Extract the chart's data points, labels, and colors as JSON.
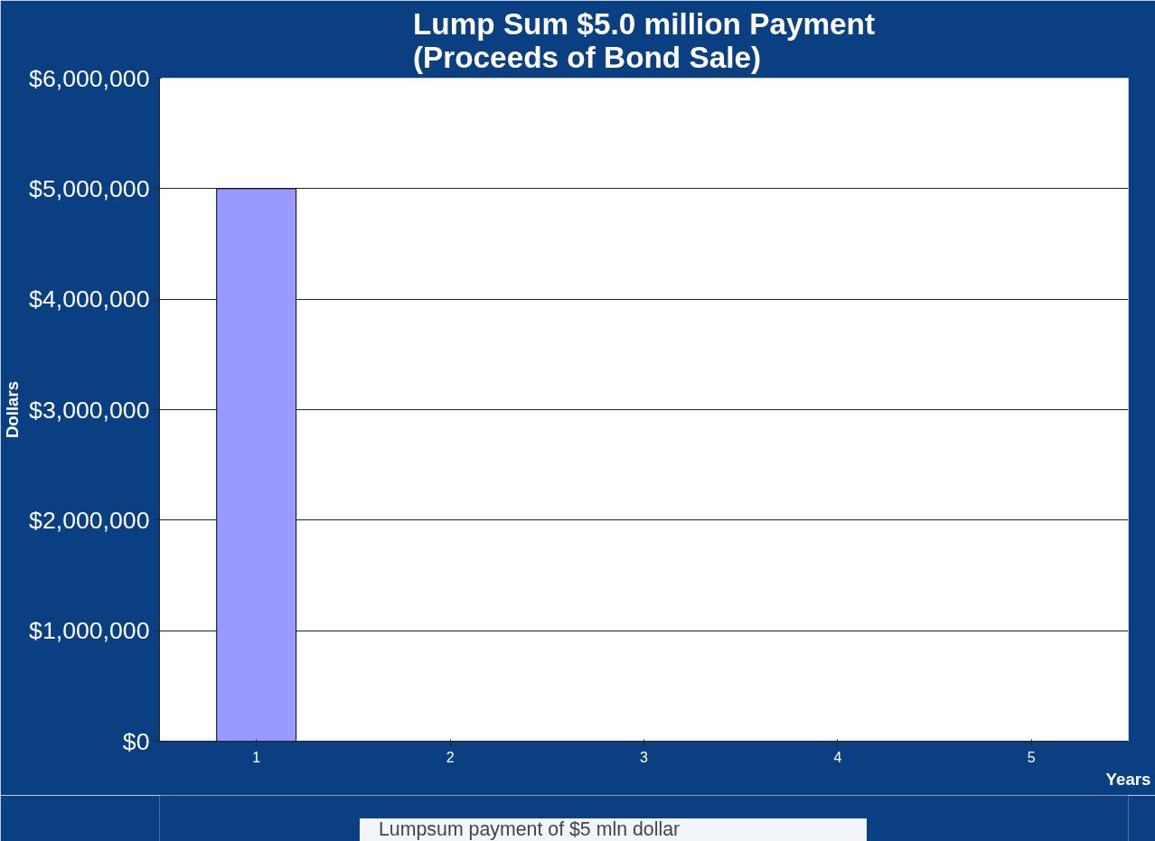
{
  "chart_data": {
    "type": "bar",
    "title": "Lump Sum $5.0 million Payment\n(Proceeds of Bond Sale)",
    "xlabel": "Years",
    "ylabel": "Dollars",
    "categories": [
      "1",
      "2",
      "3",
      "4",
      "5"
    ],
    "series": [
      {
        "name": "Lumpsum payment of $5 mln dollar",
        "color": "#9999ff",
        "values": [
          5000000,
          0,
          0,
          0,
          0
        ]
      }
    ],
    "ylim": [
      0,
      6000000
    ],
    "yticks": [
      {
        "value": 0,
        "label": "$0"
      },
      {
        "value": 1000000,
        "label": "$1,000,000"
      },
      {
        "value": 2000000,
        "label": "$2,000,000"
      },
      {
        "value": 3000000,
        "label": "$3,000,000"
      },
      {
        "value": 4000000,
        "label": "$4,000,000"
      },
      {
        "value": 5000000,
        "label": "$5,000,000"
      },
      {
        "value": 6000000,
        "label": "$6,000,000"
      }
    ],
    "grid": "y",
    "legend": "bottom"
  }
}
